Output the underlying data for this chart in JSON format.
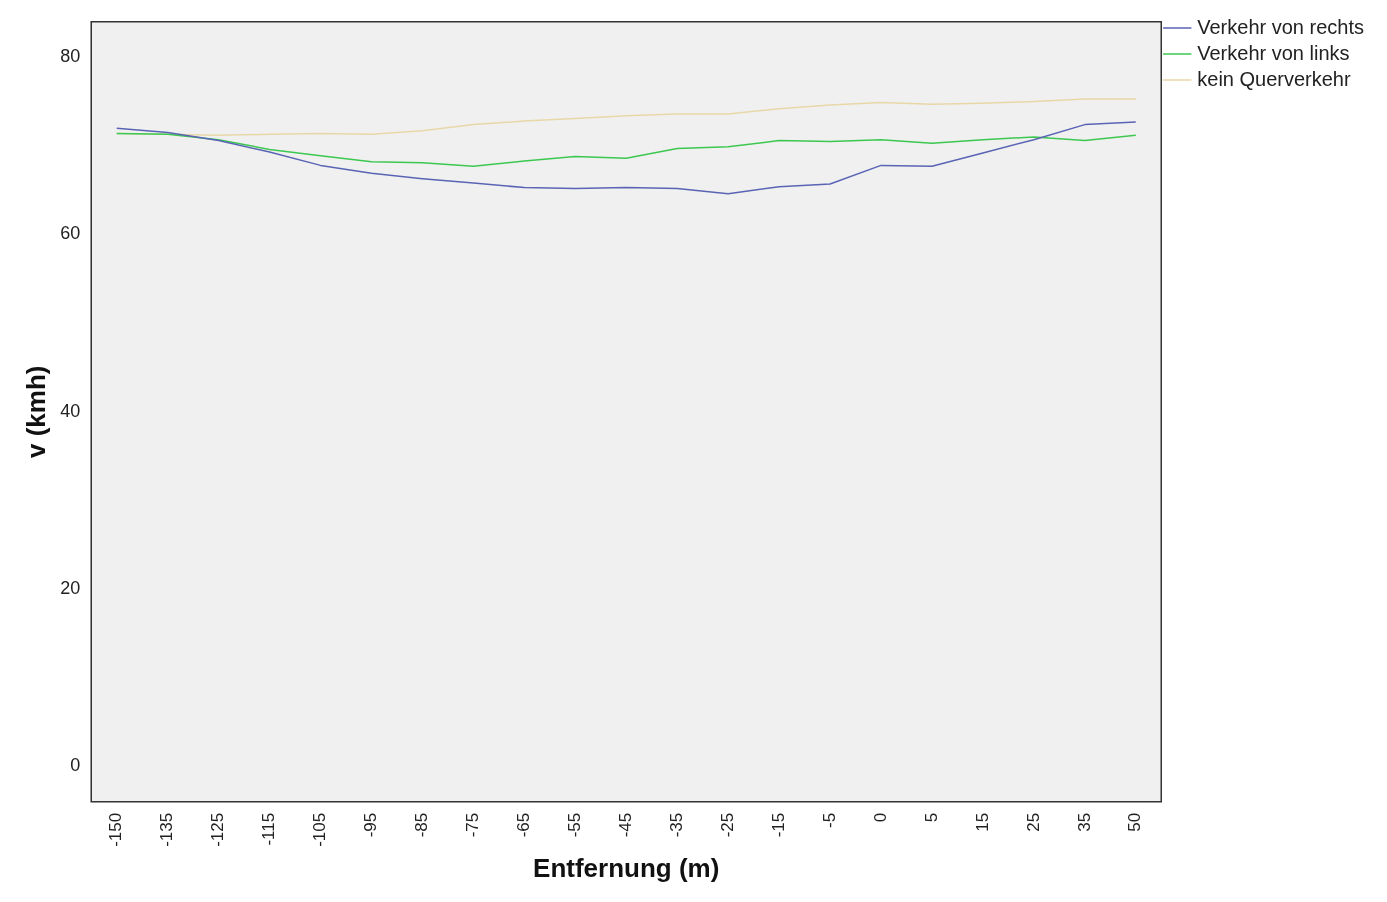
{
  "chart_data": {
    "type": "line",
    "xlabel": "Entfernung (m)",
    "ylabel": "v (kmh)",
    "categories": [
      "-150",
      "-135",
      "-125",
      "-115",
      "-105",
      "-95",
      "-85",
      "-75",
      "-65",
      "-55",
      "-45",
      "-35",
      "-25",
      "-15",
      "-5",
      "0",
      "5",
      "15",
      "25",
      "35",
      "50"
    ],
    "series": [
      {
        "name": "Verkehr von rechts",
        "color": "#5a64b4",
        "values": [
          72.0,
          71.5,
          70.6,
          69.3,
          67.8,
          66.9,
          66.3,
          65.8,
          65.3,
          65.2,
          65.3,
          65.2,
          64.6,
          65.4,
          65.7,
          67.8,
          67.7,
          69.2,
          70.7,
          72.4,
          72.7
        ]
      },
      {
        "name": "Verkehr von links",
        "color": "#3cc850",
        "values": [
          71.4,
          71.3,
          70.7,
          69.6,
          68.9,
          68.2,
          68.1,
          67.7,
          68.3,
          68.8,
          68.6,
          69.7,
          69.9,
          70.6,
          70.5,
          70.7,
          70.3,
          70.7,
          71.0,
          70.6,
          71.2
        ]
      },
      {
        "name": "kein Querverkehr",
        "color": "#e8d8a8",
        "values": [
          71.4,
          71.3,
          71.2,
          71.3,
          71.4,
          71.3,
          71.7,
          72.4,
          72.8,
          73.1,
          73.4,
          73.6,
          73.6,
          74.2,
          74.6,
          74.9,
          74.7,
          74.8,
          75.0,
          75.3,
          75.3
        ]
      }
    ],
    "ylim": [
      -4,
      84
    ],
    "yticks": [
      0,
      20,
      40,
      60,
      80
    ],
    "grid": false,
    "legend": "top right",
    "marker": "none",
    "line_style": "solid"
  }
}
